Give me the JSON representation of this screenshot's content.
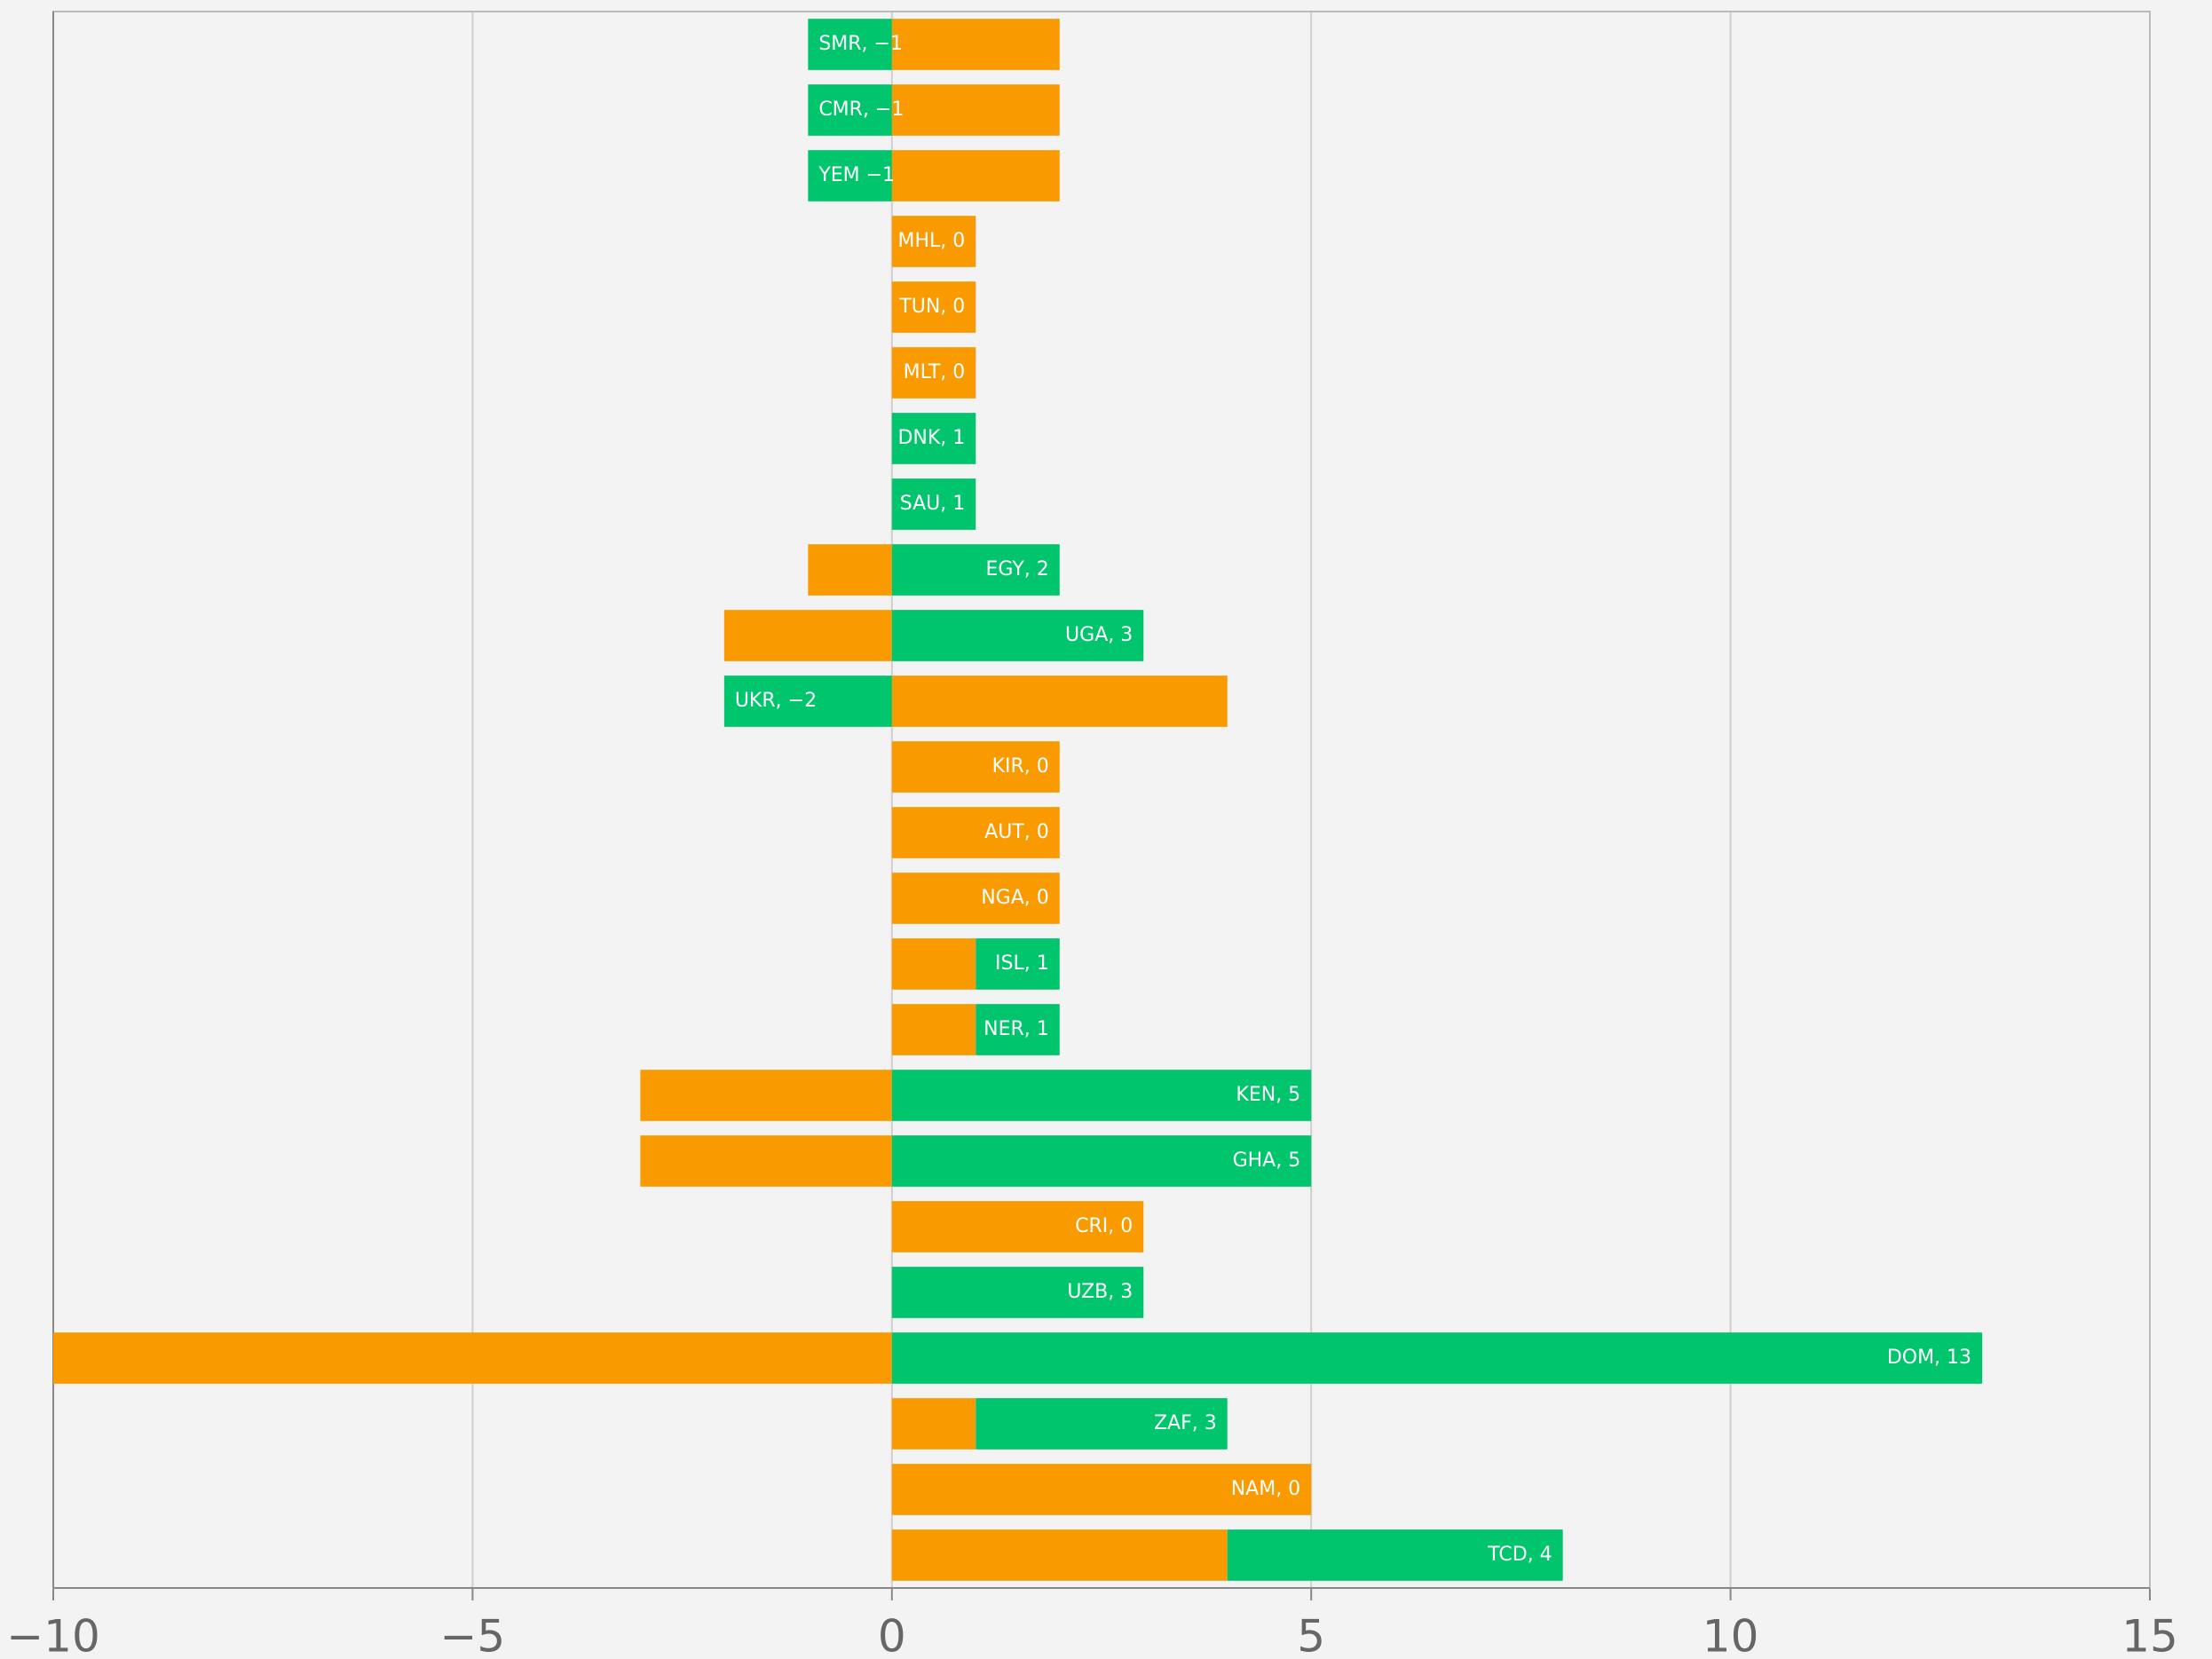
{
  "chart_data": {
    "type": "stacked-bar-horizontal",
    "series": [
      {
        "color": "#f99b00",
        "values": [
          2,
          2,
          2,
          1,
          1,
          1,
          0,
          0,
          -1,
          -2,
          4,
          2,
          2,
          2,
          1,
          1,
          -3,
          -3,
          3,
          0,
          -10,
          1,
          5,
          4
        ]
      },
      {
        "color": "#00c56c",
        "values": [
          -1,
          -1,
          -1,
          0,
          0,
          0,
          1,
          1,
          2,
          3,
          -2,
          0,
          0,
          0,
          1,
          1,
          5,
          5,
          0,
          3,
          13,
          3,
          0,
          4
        ],
        "value_labels": [
          "SMR, −1",
          "CMR, −1",
          "YEM −1",
          "MHL, 0",
          "TUN, 0",
          "MLT, 0",
          "DNK, 1",
          "SAU, 1",
          "EGY, 2",
          "UGA, 3",
          "UKR, −2",
          "KIR, 0",
          "AUT, 0",
          "NGA, 0",
          "ISL, 1",
          "NER, 1",
          "KEN, 5",
          "GHA, 5",
          "CRI, 0",
          "UZB, 3",
          "DOM, 13",
          "ZAF, 3",
          "NAM, 0",
          "TCD, 4"
        ]
      }
    ],
    "xlim": [
      -10,
      15
    ],
    "xticks": [
      {
        "value": -10,
        "label": "−10"
      },
      {
        "value": -5,
        "label": "−5"
      },
      0,
      5,
      10,
      15
    ],
    "grid": true
  }
}
